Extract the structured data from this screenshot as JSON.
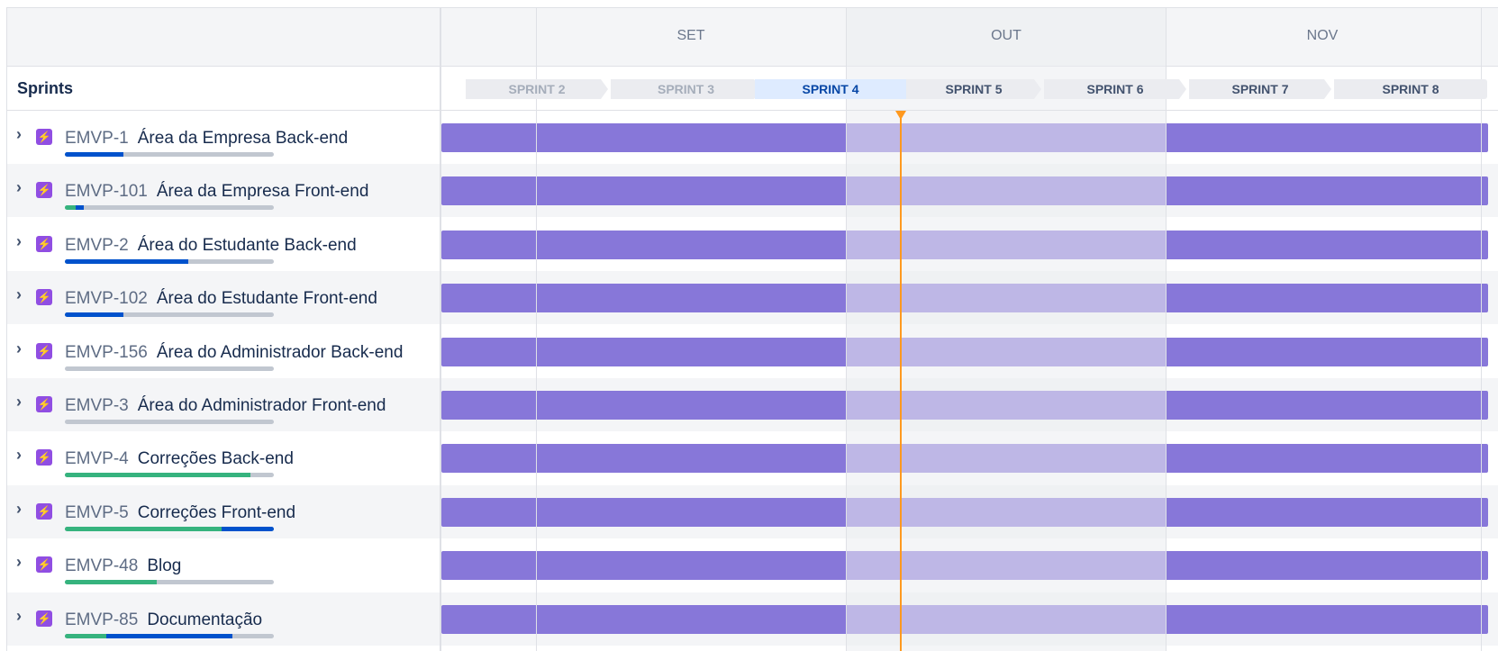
{
  "header": {
    "section_title": "Sprints"
  },
  "months": [
    "SET",
    "OUT",
    "NOV"
  ],
  "sprints": [
    {
      "label": "SPRINT 2",
      "state": "past"
    },
    {
      "label": "SPRINT 3",
      "state": "past"
    },
    {
      "label": "SPRINT 4",
      "state": "current"
    },
    {
      "label": "SPRINT 5",
      "state": "future"
    },
    {
      "label": "SPRINT 6",
      "state": "future"
    },
    {
      "label": "SPRINT 7",
      "state": "future"
    },
    {
      "label": "SPRINT 8",
      "state": "future"
    }
  ],
  "epics": [
    {
      "key": "EMVP-1",
      "name": "Área da Empresa Back-end",
      "progress": {
        "done": 0,
        "in_progress": 0.28
      }
    },
    {
      "key": "EMVP-101",
      "name": "Área da Empresa Front-end",
      "progress": {
        "done": 0.05,
        "in_progress": 0.04
      }
    },
    {
      "key": "EMVP-2",
      "name": "Área do Estudante Back-end",
      "progress": {
        "done": 0,
        "in_progress": 0.59
      }
    },
    {
      "key": "EMVP-102",
      "name": "Área do Estudante Front-end",
      "progress": {
        "done": 0,
        "in_progress": 0.28
      }
    },
    {
      "key": "EMVP-156",
      "name": "Área do Administrador Back-end",
      "progress": {
        "done": 0,
        "in_progress": 0
      }
    },
    {
      "key": "EMVP-3",
      "name": "Área do Administrador Front-end",
      "progress": {
        "done": 0,
        "in_progress": 0
      }
    },
    {
      "key": "EMVP-4",
      "name": "Correções Back-end",
      "progress": {
        "done": 0.89,
        "in_progress": 0
      }
    },
    {
      "key": "EMVP-5",
      "name": "Correções Front-end",
      "progress": {
        "done": 0.75,
        "in_progress": 0.25
      }
    },
    {
      "key": "EMVP-48",
      "name": "Blog",
      "progress": {
        "done": 0.44,
        "in_progress": 0
      }
    },
    {
      "key": "EMVP-85",
      "name": "Documentação",
      "progress": {
        "done": 0.2,
        "in_progress": 0.6
      }
    }
  ],
  "colors": {
    "epic_bar": "#8777d9",
    "epic_icon": "#904ee2",
    "done": "#36b37e",
    "in_progress": "#0052cc",
    "today_marker": "#ff991f"
  }
}
